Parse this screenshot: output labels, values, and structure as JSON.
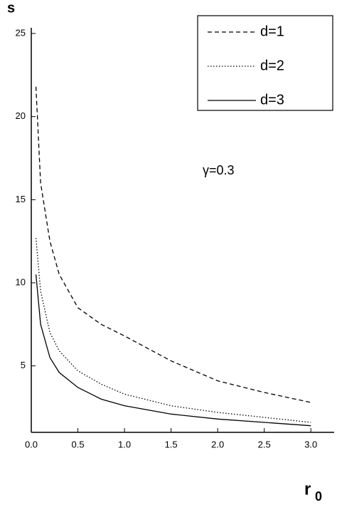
{
  "chart_data": {
    "type": "line",
    "y_label": "s",
    "x_label": "r",
    "x_label_subscript": "0",
    "annotation": "γ=0.3",
    "x": [
      0.05,
      0.1,
      0.2,
      0.3,
      0.5,
      0.75,
      1.0,
      1.5,
      2.0,
      2.5,
      3.0
    ],
    "series": [
      {
        "name": "d=1",
        "color": "#000000",
        "dash": "dashed",
        "values": [
          21.8,
          16,
          12.5,
          10.5,
          8.5,
          7.5,
          6.8,
          5.3,
          4.1,
          3.4,
          2.8
        ]
      },
      {
        "name": "d=2",
        "color": "#000000",
        "dash": "dotted",
        "values": [
          12.7,
          9.5,
          7,
          5.9,
          4.7,
          3.9,
          3.3,
          2.6,
          2.2,
          1.9,
          1.6
        ]
      },
      {
        "name": "d=3",
        "color": "#000000",
        "dash": "solid",
        "values": [
          10.5,
          7.5,
          5.5,
          4.6,
          3.7,
          3.0,
          2.6,
          2.1,
          1.8,
          1.6,
          1.4
        ]
      }
    ],
    "xlim": [
      0,
      3.25
    ],
    "ylim": [
      1,
      25
    ],
    "xticks": [
      {
        "value": 0,
        "label": "0.0"
      },
      0.5,
      {
        "value": 1,
        "label": "1.0"
      },
      1.5,
      {
        "value": 2,
        "label": "2.0"
      },
      2.5,
      {
        "value": 3,
        "label": "3.0"
      }
    ],
    "yticks": [
      5,
      10,
      15,
      20,
      25
    ],
    "legend": "top-right"
  }
}
